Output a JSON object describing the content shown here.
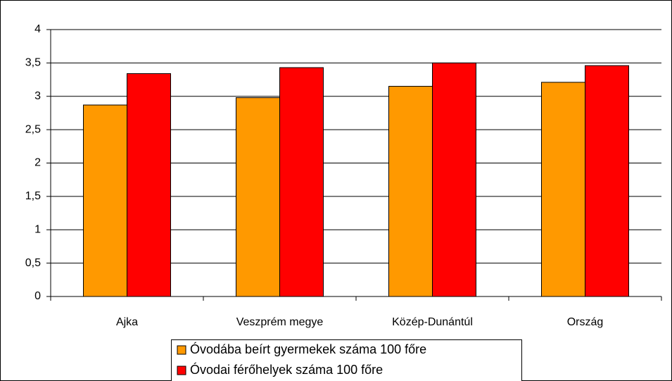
{
  "chart_data": {
    "type": "bar",
    "categories": [
      "Ajka",
      "Veszprém megye",
      "Közép-Dunántúl",
      "Ország"
    ],
    "series": [
      {
        "name": "Óvodába beírt gyermekek száma 100 főre",
        "color": "#ff9900",
        "values": [
          2.87,
          2.98,
          3.15,
          3.21
        ]
      },
      {
        "name": "Óvodai férőhelyek száma 100 főre",
        "color": "#ff0000",
        "values": [
          3.34,
          3.43,
          3.5,
          3.46
        ]
      }
    ],
    "ylim": [
      0,
      4
    ],
    "yticks": [
      0,
      {
        "value": 0.5,
        "label": "0,5"
      },
      1,
      {
        "value": 1.5,
        "label": "1,5"
      },
      2,
      {
        "value": 2.5,
        "label": "2,5"
      },
      3,
      {
        "value": 3.5,
        "label": "3,5"
      },
      4
    ],
    "grid": true,
    "legend": "bottom"
  }
}
